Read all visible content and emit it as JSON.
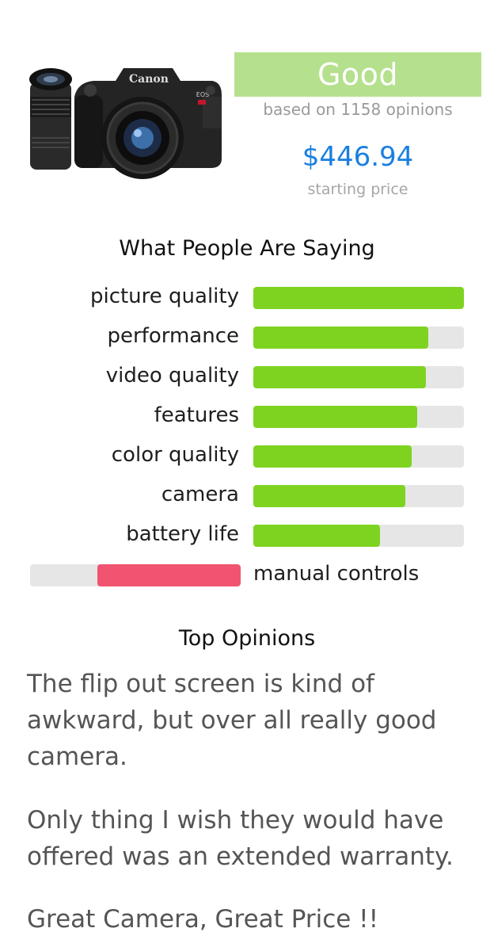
{
  "product": {
    "image_alt": "Canon EOS Rebel camera with lenses",
    "brand_text": "Canon",
    "model_text": "EOS",
    "rating_label": "Good",
    "opinions_text": "based on 1158 opinions",
    "price": "$446.94",
    "price_label": "starting price"
  },
  "sentiment": {
    "title": "What People Are Saying",
    "positive": [
      {
        "label": "picture quality",
        "level": 1.0
      },
      {
        "label": "performance",
        "level": 0.83
      },
      {
        "label": "video quality",
        "level": 0.82
      },
      {
        "label": "features",
        "level": 0.78
      },
      {
        "label": "color quality",
        "level": 0.75
      },
      {
        "label": "camera",
        "level": 0.72
      },
      {
        "label": "battery life",
        "level": 0.6
      }
    ],
    "negative": [
      {
        "label": "manual controls",
        "level": 0.68
      }
    ],
    "colors": {
      "positive": "#7ed321",
      "negative": "#f05470",
      "track": "#e6e6e6"
    }
  },
  "opinions": {
    "title": "Top Opinions",
    "items": [
      "The flip out screen is kind of awkward, but over all really good camera.",
      "Only thing I wish they would have offered was an extended warranty.",
      "Great Camera, Great Price !!"
    ]
  }
}
